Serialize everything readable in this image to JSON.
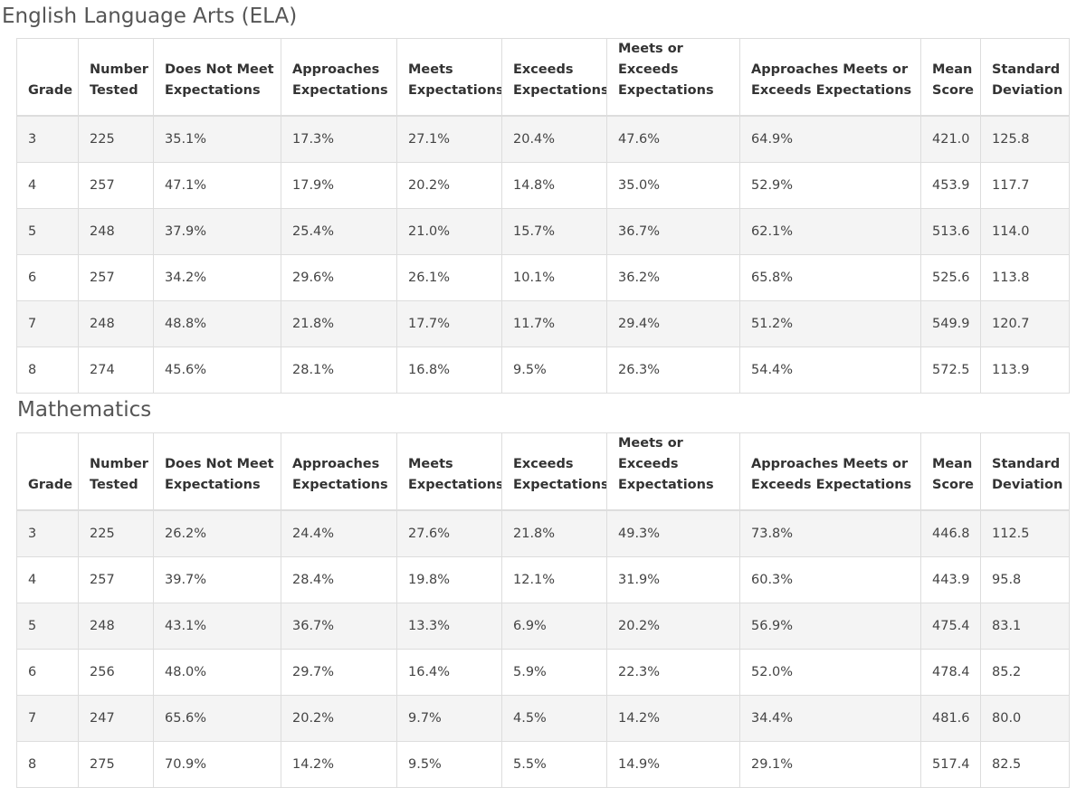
{
  "ela": {
    "title": "English Language Arts (ELA)",
    "headers": [
      [
        "Grade",
        ""
      ],
      [
        "Number",
        "Tested"
      ],
      [
        "Does Not Meet",
        "Expectations"
      ],
      [
        "Approaches",
        "Expectations"
      ],
      [
        "Meets",
        "Expectations"
      ],
      [
        "Exceeds",
        "Expectations"
      ],
      [
        "Meets or Exceeds",
        "Expectations"
      ],
      [
        "Approaches Meets or",
        "Exceeds Expectations"
      ],
      [
        "Mean",
        "Score"
      ],
      [
        "Standard",
        "Deviation"
      ]
    ],
    "rows": [
      [
        "3",
        "225",
        "35.1%",
        "17.3%",
        "27.1%",
        "20.4%",
        "47.6%",
        "64.9%",
        "421.0",
        "125.8"
      ],
      [
        "4",
        "257",
        "47.1%",
        "17.9%",
        "20.2%",
        "14.8%",
        "35.0%",
        "52.9%",
        "453.9",
        "117.7"
      ],
      [
        "5",
        "248",
        "37.9%",
        "25.4%",
        "21.0%",
        "15.7%",
        "36.7%",
        "62.1%",
        "513.6",
        "114.0"
      ],
      [
        "6",
        "257",
        "34.2%",
        "29.6%",
        "26.1%",
        "10.1%",
        "36.2%",
        "65.8%",
        "525.6",
        "113.8"
      ],
      [
        "7",
        "248",
        "48.8%",
        "21.8%",
        "17.7%",
        "11.7%",
        "29.4%",
        "51.2%",
        "549.9",
        "120.7"
      ],
      [
        "8",
        "274",
        "45.6%",
        "28.1%",
        "16.8%",
        "9.5%",
        "26.3%",
        "54.4%",
        "572.5",
        "113.9"
      ]
    ]
  },
  "math": {
    "title": "Mathematics",
    "headers": [
      [
        "Grade",
        ""
      ],
      [
        "Number",
        "Tested"
      ],
      [
        "Does Not Meet",
        "Expectations"
      ],
      [
        "Approaches",
        "Expectations"
      ],
      [
        "Meets",
        "Expectations"
      ],
      [
        "Exceeds",
        "Expectations"
      ],
      [
        "Meets or Exceeds",
        "Expectations"
      ],
      [
        "Approaches Meets or",
        "Exceeds Expectations"
      ],
      [
        "Mean",
        "Score"
      ],
      [
        "Standard",
        "Deviation"
      ]
    ],
    "rows": [
      [
        "3",
        "225",
        "26.2%",
        "24.4%",
        "27.6%",
        "21.8%",
        "49.3%",
        "73.8%",
        "446.8",
        "112.5"
      ],
      [
        "4",
        "257",
        "39.7%",
        "28.4%",
        "19.8%",
        "12.1%",
        "31.9%",
        "60.3%",
        "443.9",
        "95.8"
      ],
      [
        "5",
        "248",
        "43.1%",
        "36.7%",
        "13.3%",
        "6.9%",
        "20.2%",
        "56.9%",
        "475.4",
        "83.1"
      ],
      [
        "6",
        "256",
        "48.0%",
        "29.7%",
        "16.4%",
        "5.9%",
        "22.3%",
        "52.0%",
        "478.4",
        "85.2"
      ],
      [
        "7",
        "247",
        "65.6%",
        "20.2%",
        "9.7%",
        "4.5%",
        "14.2%",
        "34.4%",
        "481.6",
        "80.0"
      ],
      [
        "8",
        "275",
        "70.9%",
        "14.2%",
        "9.5%",
        "5.5%",
        "14.9%",
        "29.1%",
        "517.4",
        "82.5"
      ]
    ]
  }
}
